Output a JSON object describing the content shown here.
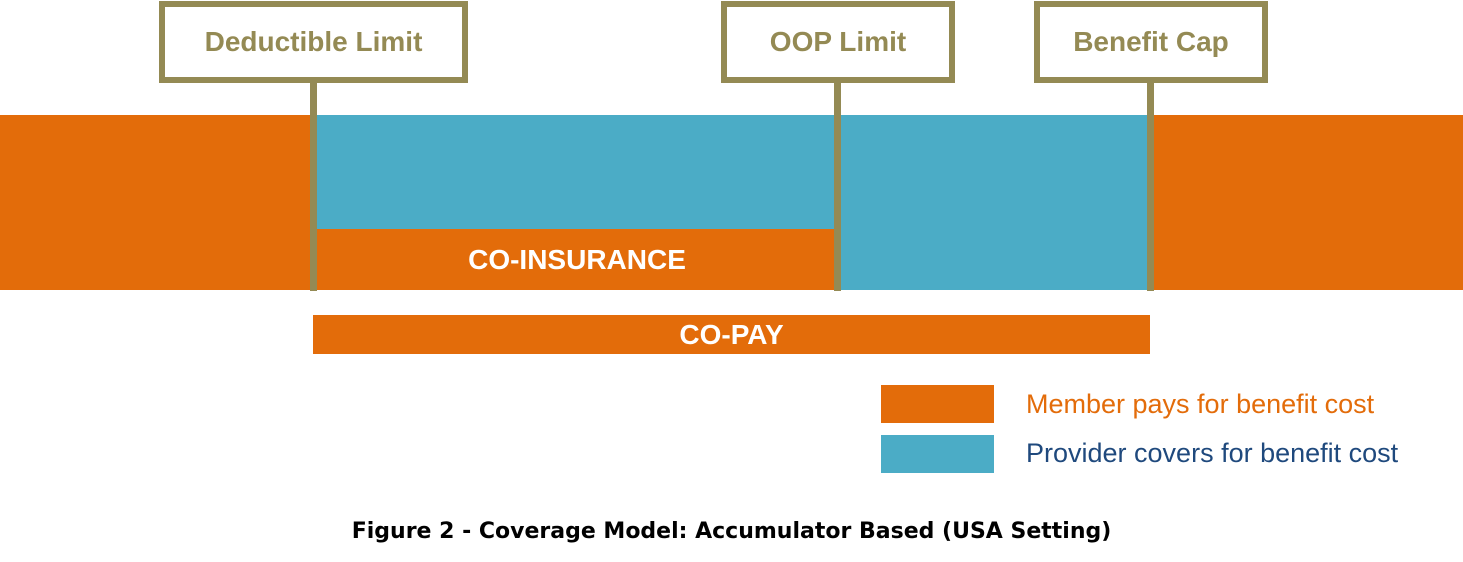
{
  "limits": {
    "deductible": "Deductible Limit",
    "oop": "OOP Limit",
    "benefit_cap": "Benefit Cap"
  },
  "bands": {
    "coinsurance": "CO-INSURANCE",
    "copay": "CO-PAY"
  },
  "legend": {
    "member": "Member pays for benefit cost",
    "provider": "Provider covers for benefit cost"
  },
  "caption": "Figure 2 - Coverage Model: Accumulator Based (USA Setting)",
  "colors": {
    "member": "#E36C0A",
    "provider": "#4BACC6",
    "limit": "#948A54",
    "provider_text": "#1F497D"
  }
}
